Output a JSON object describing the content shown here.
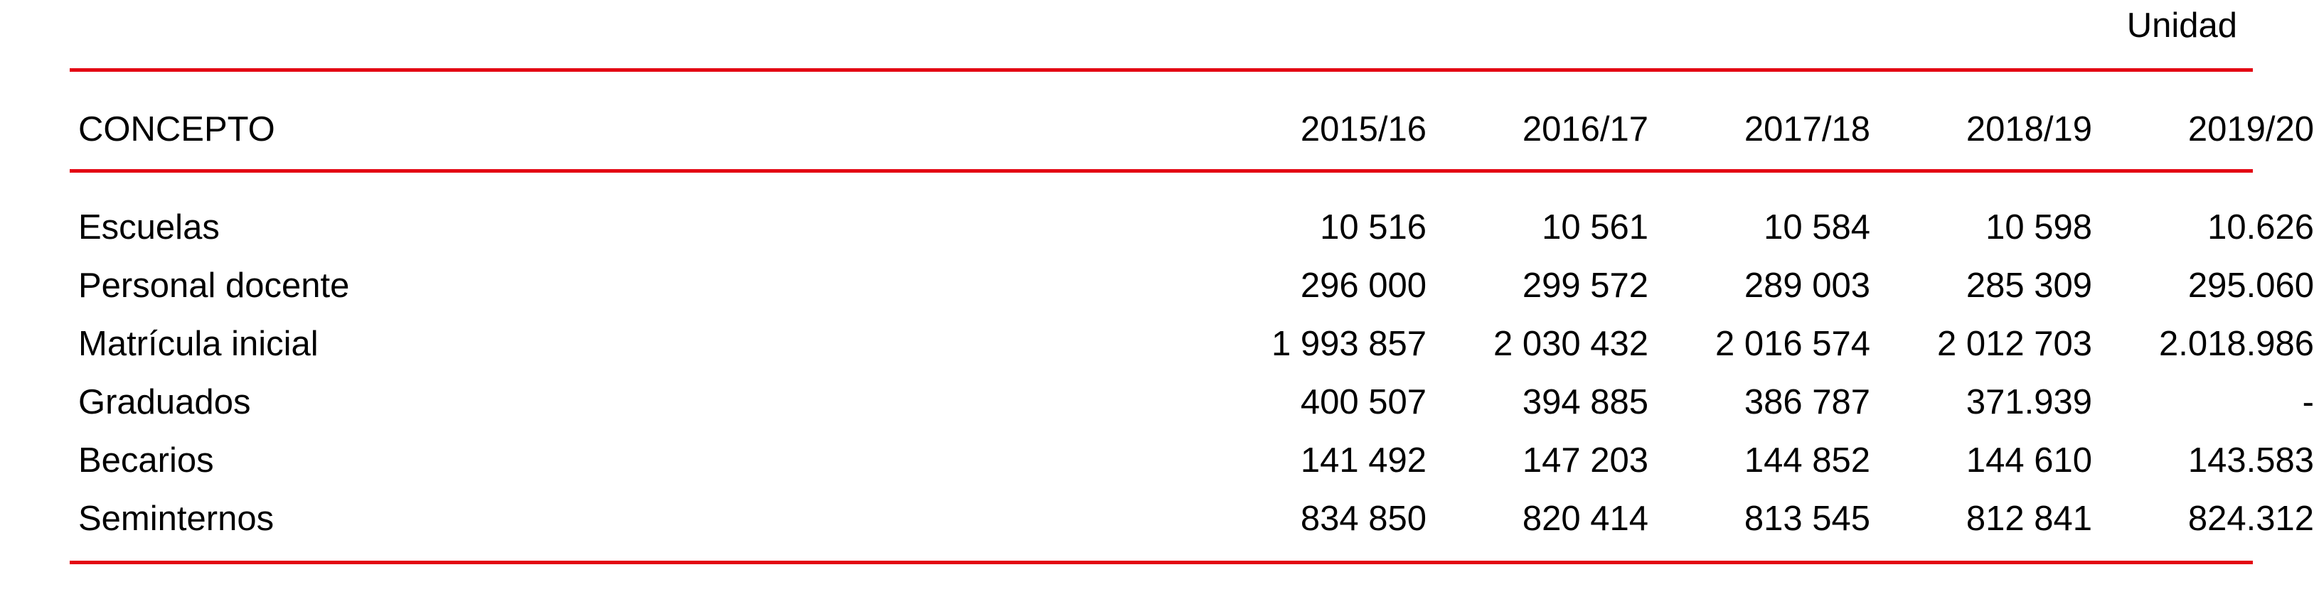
{
  "unit_label": "Unidad",
  "accent_color": "#e30613",
  "table": {
    "header": {
      "concept": "CONCEPTO",
      "years": [
        "2015/16",
        "2016/17",
        "2017/18",
        "2018/19",
        "2019/20"
      ]
    },
    "rows": [
      {
        "label": "Escuelas",
        "values": [
          "10 516",
          "10 561",
          "10 584",
          "10 598",
          "10.626"
        ]
      },
      {
        "label": "Personal docente",
        "values": [
          "296 000",
          "299 572",
          "289 003",
          "285 309",
          "295.060"
        ]
      },
      {
        "label": "Matrícula inicial",
        "values": [
          "1 993 857",
          "2 030 432",
          "2 016 574",
          "2 012 703",
          "2.018.986"
        ]
      },
      {
        "label": "Graduados",
        "values": [
          "400 507",
          "394 885",
          "386 787",
          "371.939",
          "-"
        ]
      },
      {
        "label": "Becarios",
        "values": [
          "141 492",
          "147 203",
          "144 852",
          "144 610",
          "143.583"
        ]
      },
      {
        "label": "Seminternos",
        "values": [
          "834 850",
          "820 414",
          "813 545",
          "812 841",
          "824.312"
        ]
      }
    ]
  }
}
